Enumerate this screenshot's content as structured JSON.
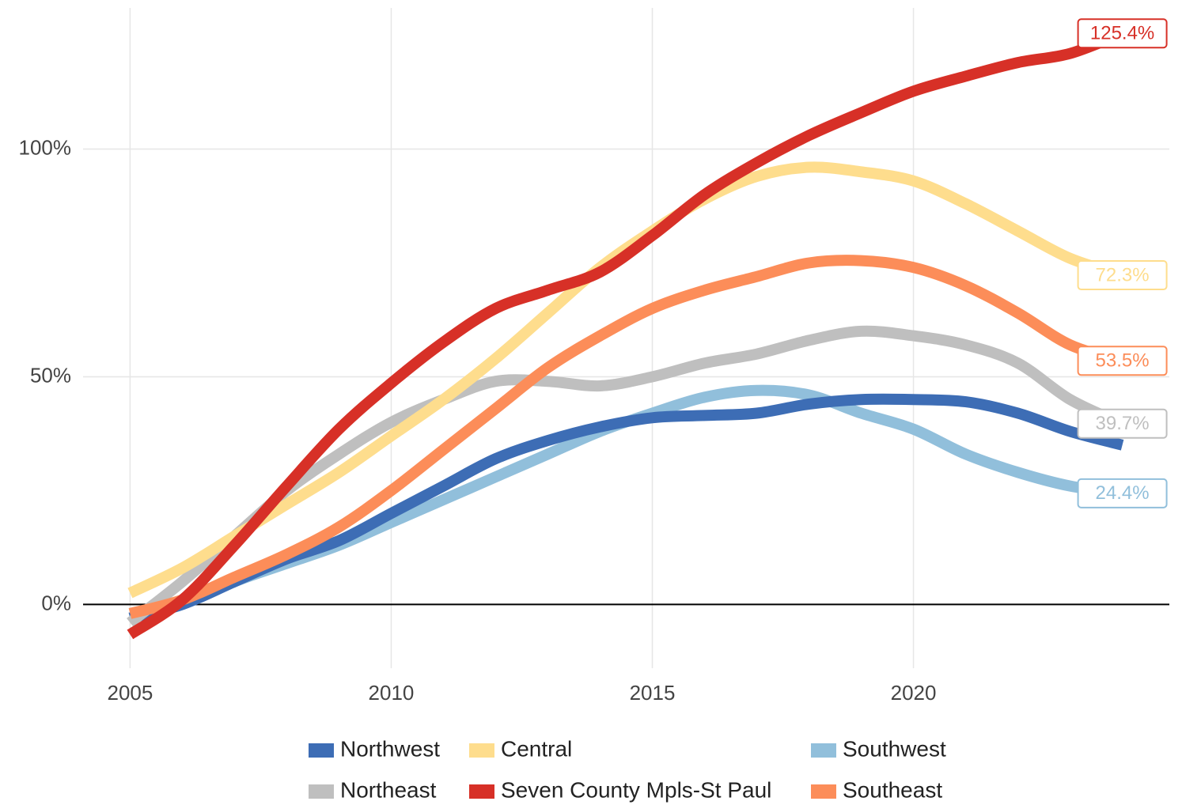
{
  "chart_data": {
    "type": "line",
    "x": [
      2005,
      2006,
      2007,
      2008,
      2009,
      2010,
      2011,
      2012,
      2013,
      2014,
      2015,
      2016,
      2017,
      2018,
      2019,
      2020,
      2021,
      2022,
      2023,
      2024
    ],
    "xlim": [
      2004.1,
      2024.9
    ],
    "xticks": [
      2005,
      2010,
      2015,
      2020
    ],
    "ylim": [
      -14,
      131
    ],
    "yticks": [
      {
        "value": 0,
        "label": "0%"
      },
      {
        "value": 50,
        "label": "50%"
      },
      {
        "value": 100,
        "label": "100%"
      }
    ],
    "grid": true,
    "series": [
      {
        "name": "Northwest",
        "color": "#3d6db5",
        "values": [
          -3,
          0,
          5,
          10,
          14,
          20,
          26,
          32,
          36,
          39,
          41,
          41.5,
          42,
          44,
          45,
          45,
          44.5,
          42,
          38,
          35
        ]
      },
      {
        "name": "Northeast",
        "color": "#bfbfbf",
        "values": [
          -4,
          5,
          15,
          25,
          33,
          40,
          45,
          49,
          49,
          48,
          50,
          53,
          55,
          58,
          60,
          59,
          57,
          53,
          45,
          39.7
        ],
        "value_labels": [
          null,
          null,
          null,
          null,
          null,
          null,
          null,
          null,
          null,
          null,
          null,
          null,
          null,
          null,
          null,
          null,
          null,
          null,
          null,
          "39.7%"
        ]
      },
      {
        "name": "Central",
        "color": "#fedd8d",
        "values": [
          2.5,
          8,
          15,
          22,
          29,
          37,
          45,
          54,
          64,
          74,
          82,
          89,
          94,
          96,
          95,
          93,
          88,
          82,
          76,
          72.3
        ],
        "value_labels": [
          null,
          null,
          null,
          null,
          null,
          null,
          null,
          null,
          null,
          null,
          null,
          null,
          null,
          null,
          null,
          null,
          null,
          null,
          null,
          "72.3%"
        ]
      },
      {
        "name": "Seven County Mpls-St Paul",
        "color": "#d73027",
        "values": [
          -6.6,
          1,
          13,
          26,
          38.5,
          48.6,
          57.6,
          65,
          69,
          73,
          81,
          90,
          97,
          103,
          108,
          112.7,
          116,
          119,
          121,
          125.4
        ],
        "value_labels": [
          null,
          null,
          null,
          null,
          null,
          null,
          null,
          null,
          null,
          null,
          null,
          null,
          null,
          null,
          null,
          null,
          null,
          null,
          null,
          "125.4%"
        ]
      },
      {
        "name": "Southwest",
        "color": "#91bfdb",
        "values": [
          -3,
          0,
          5,
          9,
          13,
          18,
          23,
          28,
          33,
          38,
          42,
          45.5,
          47,
          46,
          42,
          38.5,
          33,
          29,
          26,
          24.4
        ],
        "value_labels": [
          null,
          null,
          null,
          null,
          null,
          null,
          null,
          null,
          null,
          null,
          null,
          null,
          null,
          null,
          null,
          null,
          null,
          null,
          null,
          "24.4%"
        ]
      },
      {
        "name": "Southeast",
        "color": "#fc8d59",
        "values": [
          -2,
          1,
          6,
          11,
          17,
          25,
          34,
          43,
          52,
          59,
          65,
          69,
          72,
          75,
          75.5,
          74,
          70,
          64,
          57,
          53.5
        ],
        "value_labels": [
          null,
          null,
          null,
          null,
          null,
          null,
          null,
          null,
          null,
          null,
          null,
          null,
          null,
          null,
          null,
          null,
          null,
          null,
          null,
          "53.5%"
        ]
      }
    ]
  }
}
